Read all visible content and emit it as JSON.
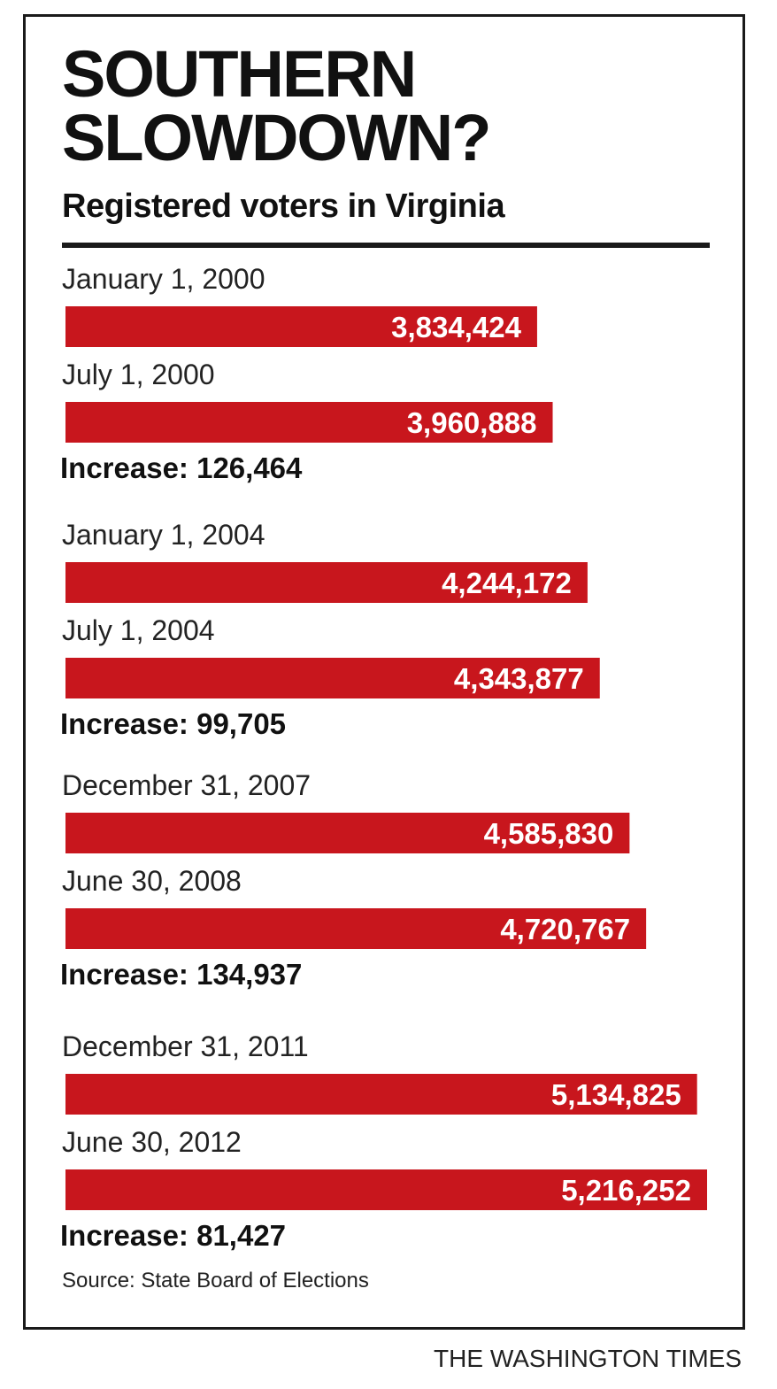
{
  "chart_data": {
    "type": "bar",
    "orientation": "horizontal",
    "title": "SOUTHERN\nSLOWDOWN?",
    "subtitle": "Registered voters in Virginia",
    "bar_color": "#c8161d",
    "categories": [
      "January 1, 2000",
      "July 1, 2000",
      "January 1, 2004",
      "July 1, 2004",
      "December 31, 2007",
      "June 30, 2008",
      "December 31, 2011",
      "June 30, 2012"
    ],
    "values": [
      3834424,
      3960888,
      4244172,
      4343877,
      4585830,
      4720767,
      5134825,
      5216252
    ],
    "value_labels": [
      "3,834,424",
      "3,960,888",
      "4,244,172",
      "4,343,877",
      "4,585,830",
      "4,720,767",
      "5,134,825",
      "5,216,252"
    ],
    "increases": [
      "Increase: 126,464",
      "Increase: 99,705",
      "Increase: 134,937",
      "Increase: 81,427"
    ],
    "source": "Source: State Board of Elections",
    "credit": "THE WASHINGTON TIMES"
  }
}
